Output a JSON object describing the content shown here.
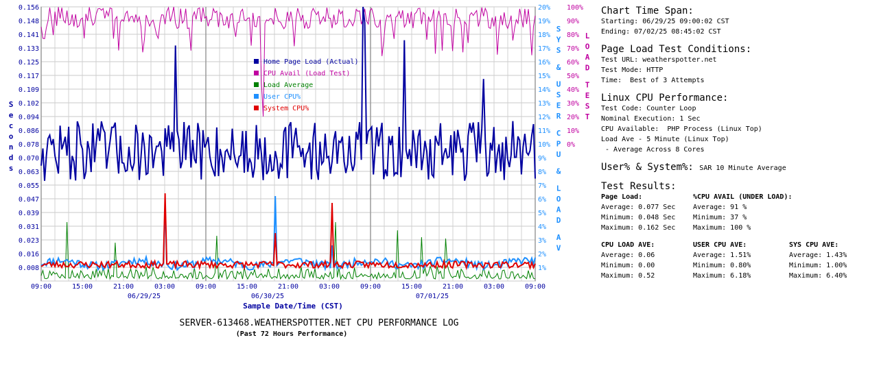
{
  "chart_data": {
    "type": "line",
    "title": "SERVER-613468.WEATHERSPOTTER.NET CPU PERFORMANCE LOG",
    "subtitle": "(Past 72 Hours Performance)",
    "xlabel": "Sample Date/Time (CST)",
    "ylabel_left": "Seconds",
    "ylabel_right_inner": "SYS & USER CPU & LOAD AV",
    "ylabel_right_outer": "LOAD TEST",
    "x_tick_labels": [
      "09:00",
      "15:00",
      "21:00",
      "03:00",
      "09:00",
      "15:00",
      "21:00",
      "03:00",
      "09:00",
      "15:00",
      "21:00",
      "03:00",
      "09:00"
    ],
    "x_date_labels": [
      {
        "label": "06/29/25",
        "tick": 3
      },
      {
        "label": "06/30/25",
        "tick": 6
      },
      {
        "label": "07/01/25",
        "tick": 10
      }
    ],
    "y_left_ticks": [
      "0.156",
      "0.148",
      "0.141",
      "0.133",
      "0.125",
      "0.117",
      "0.109",
      "0.102",
      "0.094",
      "0.086",
      "0.078",
      "0.070",
      "0.063",
      "0.055",
      "0.047",
      "0.039",
      "0.031",
      "0.023",
      "0.016",
      "0.008"
    ],
    "y_left_range": [
      0,
      0.156
    ],
    "y_mid_ticks": [
      "20%",
      "19%",
      "18%",
      "17%",
      "16%",
      "15%",
      "14%",
      "13%",
      "12%",
      "11%",
      "10%",
      "9%",
      "8%",
      "7%",
      "6%",
      "5%",
      "4%",
      "3%",
      "2%",
      "1%"
    ],
    "y_mid_range": [
      0,
      20
    ],
    "y_right_ticks": [
      "100%",
      "90%",
      "80%",
      "70%",
      "60%",
      "50%",
      "40%",
      "30%",
      "20%",
      "10%",
      "0%"
    ],
    "y_right_range": [
      0,
      100
    ],
    "grid": true,
    "legend_position": "center-top",
    "series": [
      {
        "name": "Home Page Load (Actual)",
        "color": "#0000a0",
        "axis": "left"
      },
      {
        "name": "CPU Avail (Load Test)",
        "color": "#c000a0",
        "axis": "right"
      },
      {
        "name": "Load Average",
        "color": "#008000",
        "axis": "mid"
      },
      {
        "name": "User CPU%",
        "color": "#1e90ff",
        "axis": "mid"
      },
      {
        "name": "System CPU%",
        "color": "#e00000",
        "axis": "mid"
      }
    ],
    "spikes": {
      "page_load": [
        {
          "at": 0.272,
          "value": 0.134
        },
        {
          "at": 0.652,
          "value": 0.156
        },
        {
          "at": 0.656,
          "value": 0.147
        },
        {
          "at": 0.736,
          "value": 0.137
        },
        {
          "at": 0.895,
          "value": 0.115
        }
      ],
      "load_test": [
        {
          "at": 0.445,
          "value": 72
        },
        {
          "at": 0.45,
          "value": 60
        }
      ],
      "load_avg": [
        {
          "at": 0.052,
          "value": 4.3
        },
        {
          "at": 0.151,
          "value": 2.8
        },
        {
          "at": 0.355,
          "value": 3.3
        },
        {
          "at": 0.595,
          "value": 4.3
        },
        {
          "at": 0.72,
          "value": 3.7
        },
        {
          "at": 0.77,
          "value": 3.2
        },
        {
          "at": 0.82,
          "value": 3.1
        }
      ],
      "user_cpu": [
        {
          "at": 0.251,
          "value": 5.6
        },
        {
          "at": 0.475,
          "value": 6.2
        },
        {
          "at": 0.59,
          "value": 2.6
        }
      ],
      "sys_cpu": [
        {
          "at": 0.251,
          "value": 6.4
        },
        {
          "at": 0.475,
          "value": 3.5
        },
        {
          "at": 0.59,
          "value": 5.7
        }
      ]
    }
  },
  "info": {
    "span_title": "Chart Time Span:",
    "span_start": "Starting: 06/29/25 09:00:02 CST",
    "span_end": "Ending: 07/02/25 08:45:02 CST",
    "cond_title": "Page Load Test Conditions:",
    "cond_url": "Test URL: weatherspotter.net",
    "cond_mode": "Test Mode: HTTP",
    "cond_time": "Time:  Best of 3 Attempts",
    "linux_title": "Linux CPU Performance:",
    "linux_code": "Test Code: Counter Loop",
    "linux_nominal": "Nominal Execution: 1 Sec",
    "linux_avail": "CPU Available:  PHP Process (Linux Top)",
    "linux_load": "Load Ave - 5 Minute (Linux Top)",
    "linux_cores": " - Average Across 8 Cores",
    "us_title": "User% & System%:",
    "us_desc": "SAR 10 Minute Average",
    "results_title": "Test Results:",
    "pl_head": "Page Load:",
    "pl_avg": "Average: 0.077 Sec",
    "pl_min": "Minimum: 0.048 Sec",
    "pl_max": "Maximum: 0.162 Sec",
    "cpu_head": "%CPU AVAIL (UNDER LOAD):",
    "cpu_avg": "Average: 91 %",
    "cpu_min": "Minimum: 37 %",
    "cpu_max": "Maximum: 100 %",
    "la_head": "CPU LOAD AVE:",
    "la_avg": "Average: 0.06",
    "la_min": "Minimum: 0.00",
    "la_max": "Maximum: 0.52",
    "uc_head": "USER CPU AVE:",
    "uc_avg": "Average: 1.51%",
    "uc_min": "Minimum: 0.80%",
    "uc_max": "Maximum: 6.18%",
    "sc_head": "SYS CPU AVE:",
    "sc_avg": "Average: 1.43%",
    "sc_min": "Minimum: 1.00%",
    "sc_max": "Maximum: 6.40%"
  }
}
